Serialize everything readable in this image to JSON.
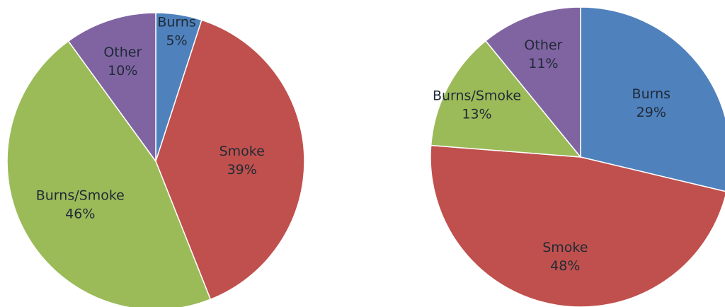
{
  "chart_data": [
    {
      "type": "pie",
      "title": "",
      "slices": [
        {
          "label": "Burns",
          "value": 5,
          "value_label": "5%",
          "color": "#4F81BD"
        },
        {
          "label": "Smoke",
          "value": 39,
          "value_label": "39%",
          "color": "#C0504D"
        },
        {
          "label": "Burns/Smoke",
          "value": 46,
          "value_label": "46%",
          "color": "#9BBB59"
        },
        {
          "label": "Other",
          "value": 10,
          "value_label": "10%",
          "color": "#8064A2"
        }
      ]
    },
    {
      "type": "pie",
      "title": "",
      "slices": [
        {
          "label": "Burns",
          "value": 29,
          "value_label": "29%",
          "color": "#4F81BD"
        },
        {
          "label": "Smoke",
          "value": 48,
          "value_label": "48%",
          "color": "#C0504D"
        },
        {
          "label": "Burns/Smoke",
          "value": 13,
          "value_label": "13%",
          "color": "#9BBB59"
        },
        {
          "label": "Other",
          "value": 11,
          "value_label": "11%",
          "color": "#8064A2"
        }
      ]
    }
  ]
}
